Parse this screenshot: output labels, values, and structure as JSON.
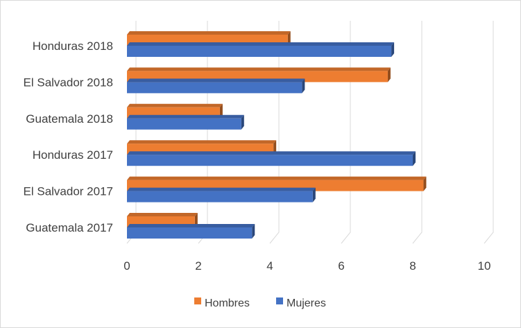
{
  "chart_data": {
    "type": "bar",
    "orientation": "horizontal",
    "style": "3d-clustered",
    "categories": [
      "Guatemala 2017",
      "El Salvador 2017",
      "Honduras 2017",
      "Guatemala 2018",
      "El Salvador 2018",
      "Honduras 2018"
    ],
    "series": [
      {
        "name": "Hombres",
        "color": "#ED7D31",
        "values": [
          1.9,
          8.3,
          4.1,
          2.6,
          7.3,
          4.5
        ]
      },
      {
        "name": "Mujeres",
        "color": "#4472C4",
        "values": [
          3.5,
          5.2,
          8.0,
          3.2,
          4.9,
          7.4
        ]
      }
    ],
    "xticks": [
      "0",
      "2",
      "4",
      "6",
      "8",
      "10"
    ],
    "xlim": [
      0,
      10
    ],
    "grid": true,
    "legend": "bottom"
  }
}
